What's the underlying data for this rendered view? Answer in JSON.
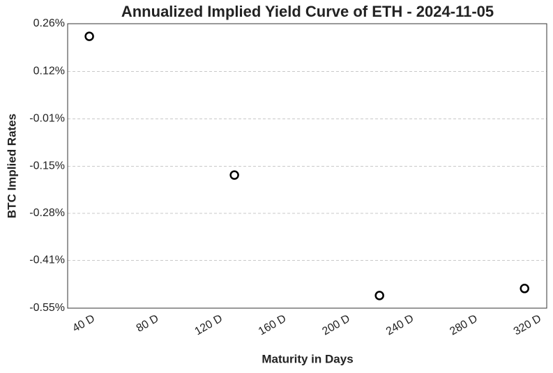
{
  "chart_data": {
    "type": "scatter",
    "title": "Annualized Implied Yield Curve of ETH - 2024-11-05",
    "x_label": "Maturity in Days",
    "y_label": "BTC Implied Rates",
    "series": [
      {
        "color": "#000000",
        "x": [
          37,
          128,
          219,
          310
        ],
        "values": [
          0.224,
          -0.171,
          -0.514,
          -0.494
        ]
      }
    ],
    "xlim": [
      23.4,
      323.9
    ],
    "xticks": [
      {
        "value": 40,
        "label": "40 D"
      },
      {
        "value": 80,
        "label": "80 D"
      },
      {
        "value": 120,
        "label": "120 D"
      },
      {
        "value": 160,
        "label": "160 D"
      },
      {
        "value": 200,
        "label": "200 D"
      },
      {
        "value": 240,
        "label": "240 D"
      },
      {
        "value": 280,
        "label": "280 D"
      },
      {
        "value": 320,
        "label": "320 D"
      }
    ],
    "ylim": [
      -0.55,
      0.26
    ],
    "yticks": [
      {
        "value": 0.26,
        "label": "0.26%"
      },
      {
        "value": 0.124,
        "label": "0.12%"
      },
      {
        "value": -0.011,
        "label": "-0.01%"
      },
      {
        "value": -0.146,
        "label": "-0.15%"
      },
      {
        "value": -0.28,
        "label": "-0.28%"
      },
      {
        "value": -0.414,
        "label": "-0.41%"
      },
      {
        "value": -0.55,
        "label": "-0.55%"
      }
    ],
    "grid": true
  }
}
